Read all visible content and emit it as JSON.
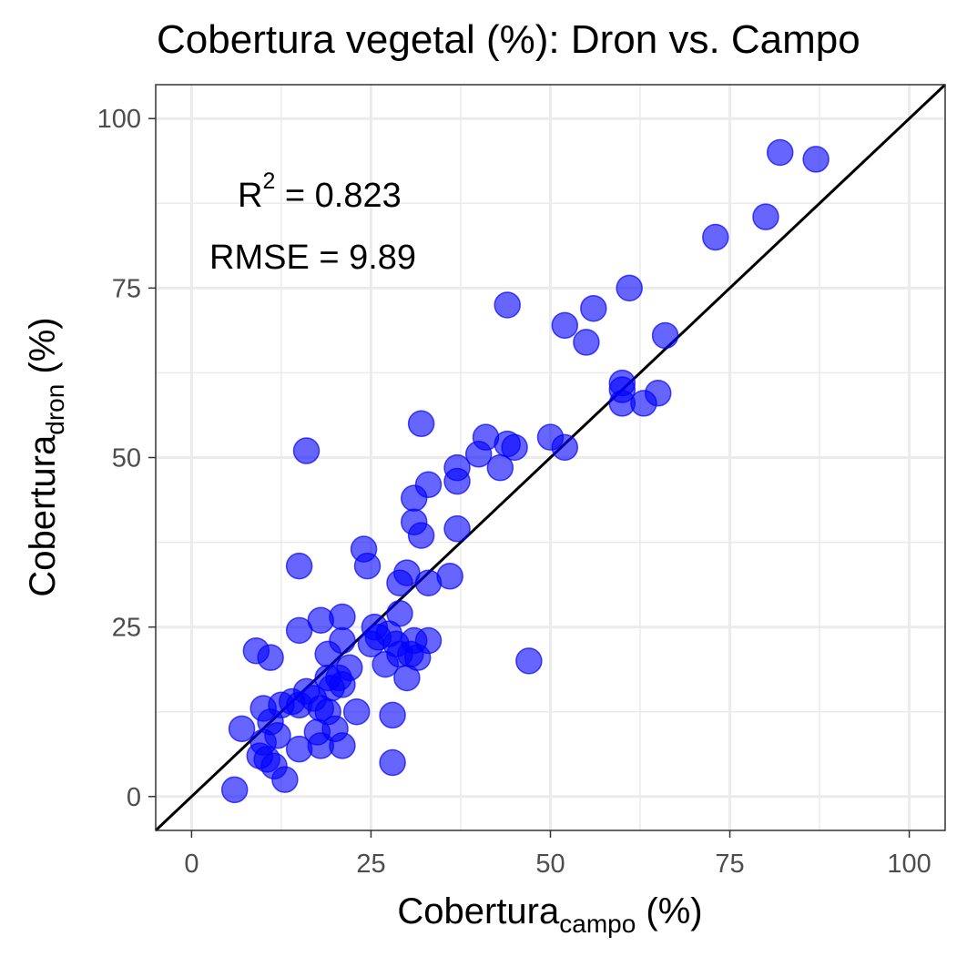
{
  "chart_data": {
    "type": "scatter",
    "title": "Cobertura vegetal (%): Dron vs. Campo",
    "xlabel": {
      "main": "Cobertura",
      "sub": "campo",
      "suffix": " (%)"
    },
    "ylabel": {
      "main": "Cobertura",
      "sub": "dron",
      "suffix": " (%)"
    },
    "xlim": [
      -5,
      105
    ],
    "ylim": [
      -5,
      105
    ],
    "xticks": [
      0,
      25,
      50,
      75,
      100
    ],
    "yticks": [
      0,
      25,
      50,
      75,
      100
    ],
    "grid": true,
    "reference_line": {
      "type": "identity",
      "color": "#000000"
    },
    "point_color": "#0000ff",
    "point_opacity": 0.6,
    "annotations": {
      "r2_label": "R",
      "r2_sup": "2",
      "r2_value": " = 0.823",
      "rmse": "RMSE = 9.89"
    },
    "points": [
      [
        6,
        1
      ],
      [
        7,
        10
      ],
      [
        9,
        21.5
      ],
      [
        9.5,
        6
      ],
      [
        10,
        13
      ],
      [
        10,
        8
      ],
      [
        10.5,
        5.5
      ],
      [
        11,
        11
      ],
      [
        11.5,
        4.5
      ],
      [
        11,
        20.5
      ],
      [
        12,
        9
      ],
      [
        12.5,
        13.5
      ],
      [
        13,
        2.5
      ],
      [
        14,
        14
      ],
      [
        15,
        34
      ],
      [
        15,
        24.5
      ],
      [
        15,
        7
      ],
      [
        15,
        13.5
      ],
      [
        16,
        51
      ],
      [
        16,
        15.5
      ],
      [
        17,
        14.5
      ],
      [
        17.5,
        9.5
      ],
      [
        18,
        26
      ],
      [
        18,
        13
      ],
      [
        18,
        7.5
      ],
      [
        19,
        21
      ],
      [
        19,
        17.5
      ],
      [
        19,
        12.5
      ],
      [
        19.5,
        16
      ],
      [
        20,
        10
      ],
      [
        20.5,
        17.5
      ],
      [
        21,
        26.5
      ],
      [
        21,
        23
      ],
      [
        21,
        16.5
      ],
      [
        21,
        7.5
      ],
      [
        22,
        19
      ],
      [
        23,
        12.5
      ],
      [
        24,
        36.5
      ],
      [
        24.5,
        34
      ],
      [
        25,
        22.5
      ],
      [
        25.5,
        25
      ],
      [
        26,
        23.5
      ],
      [
        27,
        19.5
      ],
      [
        27.5,
        24
      ],
      [
        28,
        12
      ],
      [
        28,
        5
      ],
      [
        28.5,
        22.5
      ],
      [
        29,
        27
      ],
      [
        29,
        31.5
      ],
      [
        29,
        21
      ],
      [
        30,
        33
      ],
      [
        30,
        17.5
      ],
      [
        30.5,
        21
      ],
      [
        31,
        40.5
      ],
      [
        31,
        44
      ],
      [
        31,
        23
      ],
      [
        31.5,
        20.5
      ],
      [
        32,
        55
      ],
      [
        32,
        38.5
      ],
      [
        33,
        46
      ],
      [
        33,
        31.5
      ],
      [
        33,
        23
      ],
      [
        36,
        32.5
      ],
      [
        37,
        48.5
      ],
      [
        37,
        46.5
      ],
      [
        37,
        39.5
      ],
      [
        40,
        50.5
      ],
      [
        41,
        53
      ],
      [
        43,
        48.5
      ],
      [
        44,
        52
      ],
      [
        44,
        72.5
      ],
      [
        45,
        51.5
      ],
      [
        47,
        20
      ],
      [
        50,
        53
      ],
      [
        52,
        51.5
      ],
      [
        52,
        69.5
      ],
      [
        55,
        67
      ],
      [
        56,
        72
      ],
      [
        60,
        61
      ],
      [
        60,
        60
      ],
      [
        60,
        58
      ],
      [
        61,
        75
      ],
      [
        63,
        58
      ],
      [
        65,
        59.5
      ],
      [
        66,
        68
      ],
      [
        73,
        82.5
      ],
      [
        80,
        85.5
      ],
      [
        82,
        95
      ],
      [
        87,
        94
      ]
    ]
  }
}
